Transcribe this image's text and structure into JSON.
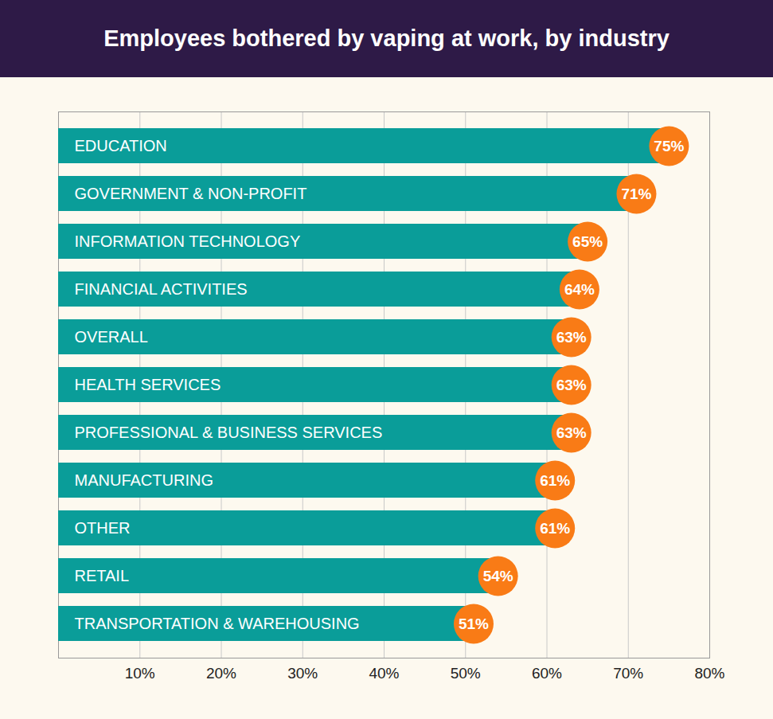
{
  "chart_data": {
    "type": "bar",
    "title": "Employees bothered by vaping at work, by industry",
    "orientation": "horizontal",
    "categories": [
      "EDUCATION",
      "GOVERNMENT & NON-PROFIT",
      "INFORMATION TECHNOLOGY",
      "FINANCIAL ACTIVITIES",
      "OVERALL",
      "HEALTH SERVICES",
      "PROFESSIONAL & BUSINESS SERVICES",
      "MANUFACTURING",
      "OTHER",
      "RETAIL",
      "TRANSPORTATION & WAREHOUSING"
    ],
    "values": [
      75,
      71,
      65,
      64,
      63,
      63,
      63,
      61,
      61,
      54,
      51
    ],
    "value_labels": [
      "75%",
      "71%",
      "65%",
      "64%",
      "63%",
      "63%",
      "63%",
      "61%",
      "61%",
      "54%",
      "51%"
    ],
    "data_labels": true,
    "color": "#0a9d99",
    "xlim": [
      0,
      80
    ],
    "xticks": [
      {
        "value": 10,
        "label": "10%"
      },
      {
        "value": 20,
        "label": "20%"
      },
      {
        "value": 30,
        "label": "30%"
      },
      {
        "value": 40,
        "label": "40%"
      },
      {
        "value": 50,
        "label": "50%"
      },
      {
        "value": 60,
        "label": "60%"
      },
      {
        "value": 70,
        "label": "70%"
      },
      {
        "value": 80,
        "label": "80%"
      }
    ],
    "grid": true,
    "tick_labels": "x"
  }
}
